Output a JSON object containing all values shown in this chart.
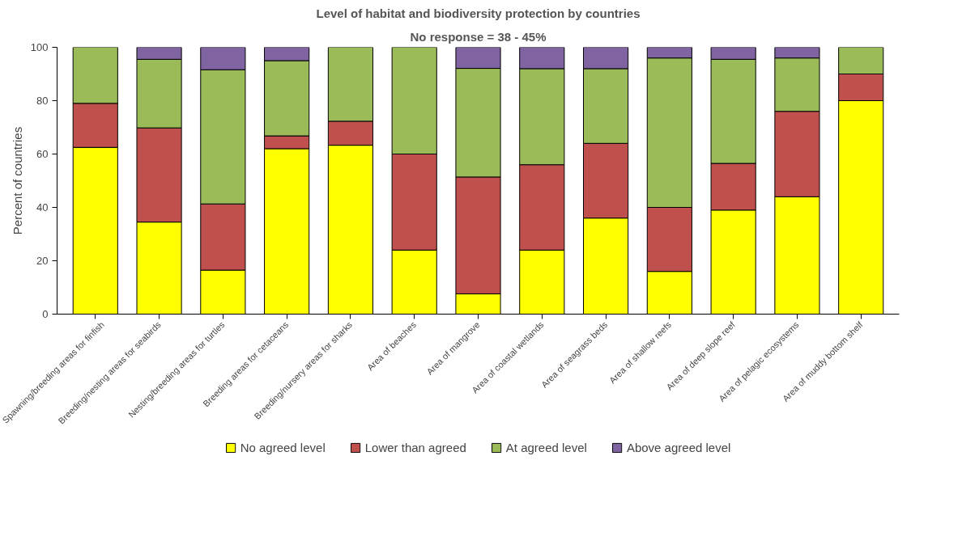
{
  "chart_data": {
    "type": "bar",
    "stacked": true,
    "title": "Level of habitat and biodiversity protection by countries",
    "subtitle": "No response = 38 - 45%",
    "ylabel": "Percent of countries",
    "categories": [
      "Spawning/breeding areas for finfish",
      "Breeding/nesting areas for seabirds",
      "Nesting/breeding areas for turtles",
      "Breeding areas for cetaceans",
      "Breeding/nursery areas for sharks",
      "Area of beaches",
      "Area of mangrove",
      "Area of coastal wetlands",
      "Area of seagrass beds",
      "Area of shallow reefs",
      "Area of deep slope reef",
      "Area of pelagic ecosystems",
      "Area of muddy bottom shelf"
    ],
    "series": [
      {
        "name": "No agreed level",
        "color": "#ffff00",
        "values": [
          62.5,
          34.5,
          16.5,
          62,
          63.3,
          24,
          7.6,
          24,
          36,
          16,
          39,
          44,
          80
        ]
      },
      {
        "name": "Lower than agreed",
        "color": "#c0504d",
        "values": [
          16.5,
          35.3,
          24.8,
          4.8,
          9,
          36,
          43.8,
          32,
          28,
          24,
          17.5,
          32,
          10
        ]
      },
      {
        "name": "At agreed level",
        "color": "#9bbb59",
        "values": [
          21,
          25.7,
          50.3,
          28.2,
          27.7,
          40,
          40.7,
          36,
          28,
          56,
          39,
          20,
          10
        ]
      },
      {
        "name": "Above agreed level",
        "color": "#8064a2",
        "values": [
          0,
          4.5,
          8.4,
          5,
          0,
          0,
          7.9,
          8,
          8,
          4,
          4.5,
          4,
          0
        ]
      }
    ],
    "ylim": [
      0,
      100
    ],
    "yticks": [
      0,
      20,
      40,
      60,
      80,
      100
    ],
    "grid": false,
    "legend": "bottom"
  }
}
